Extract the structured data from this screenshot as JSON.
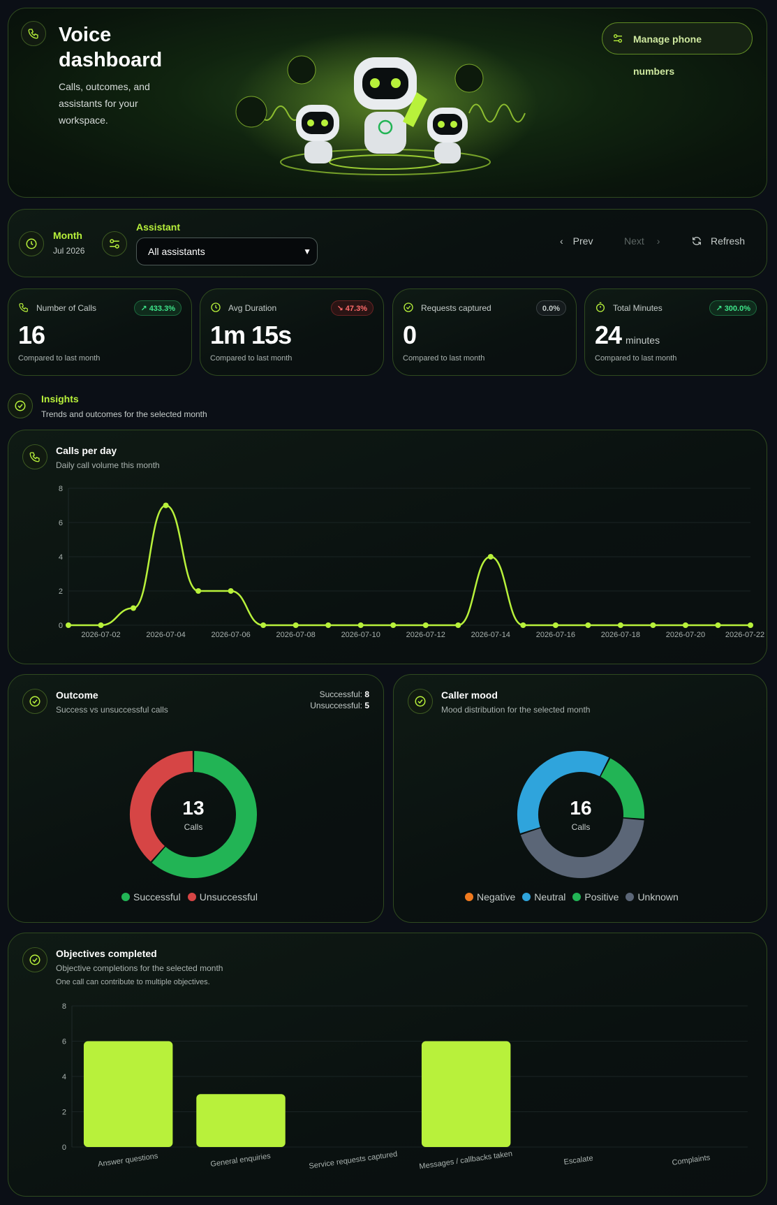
{
  "hero": {
    "title": "Voice dashboard",
    "subtitle": "Calls, outcomes, and assistants for your workspace.",
    "manage_button": "Manage phone numbers"
  },
  "filters": {
    "month_label": "Month",
    "month_value": "Jul 2026",
    "assistant_label": "Assistant",
    "assistant_value": "All assistants",
    "prev": "Prev",
    "next": "Next",
    "refresh": "Refresh"
  },
  "stats": [
    {
      "label": "Number of Calls",
      "value": "16",
      "unit": "",
      "badge": "433.3%",
      "trend": "up",
      "compare": "Compared to last month",
      "icon": "phone-icon"
    },
    {
      "label": "Avg Duration",
      "value": "1m 15s",
      "unit": "",
      "badge": "47.3%",
      "trend": "down",
      "compare": "Compared to last month",
      "icon": "clock-icon"
    },
    {
      "label": "Requests captured",
      "value": "0",
      "unit": "",
      "badge": "0.0%",
      "trend": "flat",
      "compare": "Compared to last month",
      "icon": "check-circle-icon"
    },
    {
      "label": "Total Minutes",
      "value": "24",
      "unit": "minutes",
      "badge": "300.0%",
      "trend": "up",
      "compare": "Compared to last month",
      "icon": "stopwatch-icon"
    }
  ],
  "insights": {
    "title": "Insights",
    "subtitle": "Trends and outcomes for the selected month"
  },
  "calls_per_day": {
    "title": "Calls per day",
    "subtitle": "Daily call volume this month"
  },
  "outcome": {
    "title": "Outcome",
    "subtitle": "Success vs unsuccessful calls",
    "successful_label": "Successful:",
    "successful_value": "8",
    "unsuccessful_label": "Unsuccessful:",
    "unsuccessful_value": "5",
    "center_value": "13",
    "center_label": "Calls"
  },
  "mood": {
    "title": "Caller mood",
    "subtitle": "Mood distribution for the selected month",
    "center_value": "16",
    "center_label": "Calls"
  },
  "objectives": {
    "title": "Objectives completed",
    "subtitle": "Objective completions for the selected month",
    "note": "One call can contribute to multiple objectives."
  },
  "colors": {
    "accent": "#b8f13b",
    "successful": "#22b455",
    "unsuccessful": "#d64545",
    "negative": "#f07a1e",
    "neutral": "#2fa4dc",
    "positive": "#22b455",
    "unknown": "#5b6677"
  },
  "chart_data": [
    {
      "type": "line",
      "x": [
        "2026-07-01",
        "2026-07-02",
        "2026-07-03",
        "2026-07-04",
        "2026-07-05",
        "2026-07-06",
        "2026-07-07",
        "2026-07-08",
        "2026-07-09",
        "2026-07-10",
        "2026-07-11",
        "2026-07-12",
        "2026-07-13",
        "2026-07-14",
        "2026-07-15",
        "2026-07-16",
        "2026-07-17",
        "2026-07-18",
        "2026-07-19",
        "2026-07-20",
        "2026-07-21",
        "2026-07-22"
      ],
      "x_tick_labels": [
        "2026-07-02",
        "2026-07-04",
        "2026-07-06",
        "2026-07-08",
        "2026-07-10",
        "2026-07-12",
        "2026-07-14",
        "2026-07-16",
        "2026-07-18",
        "2026-07-20",
        "2026-07-22"
      ],
      "values": [
        0,
        0,
        1,
        7,
        2,
        2,
        0,
        0,
        0,
        0,
        0,
        0,
        0,
        4,
        0,
        0,
        0,
        0,
        0,
        0,
        0,
        0
      ],
      "ylim": [
        0,
        8
      ],
      "yticks": [
        0,
        2,
        4,
        6,
        8
      ]
    },
    {
      "type": "pie",
      "categories": [
        "Successful",
        "Unsuccessful"
      ],
      "values": [
        8,
        5
      ]
    },
    {
      "type": "pie",
      "categories": [
        "Negative",
        "Neutral",
        "Positive",
        "Unknown"
      ],
      "values": [
        0,
        6,
        3,
        7
      ]
    },
    {
      "type": "bar",
      "categories": [
        "Answer questions",
        "General enquiries",
        "Service requests captured",
        "Messages / callbacks taken",
        "Escalate",
        "Complaints"
      ],
      "values": [
        6,
        3,
        0,
        6,
        0,
        0
      ],
      "ylim": [
        0,
        8
      ],
      "yticks": [
        0,
        2,
        4,
        6,
        8
      ]
    }
  ]
}
